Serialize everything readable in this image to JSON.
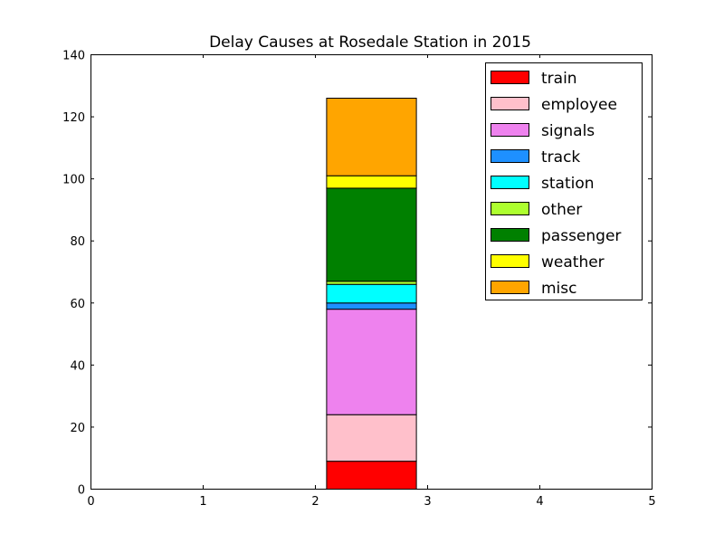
{
  "chart_data": {
    "type": "bar",
    "stacked": true,
    "title": "Delay Causes at Rosedale Station in 2015",
    "xlabel": "",
    "ylabel": "",
    "xlim": [
      0,
      5
    ],
    "ylim": [
      0,
      140
    ],
    "x_ticks": [
      0,
      1,
      2,
      3,
      4,
      5
    ],
    "y_ticks": [
      0,
      20,
      40,
      60,
      80,
      100,
      120,
      140
    ],
    "bar": {
      "left": 2.1,
      "right": 2.9
    },
    "grid": false,
    "legend_placement": "top-right",
    "series": [
      {
        "name": "train",
        "value": 9,
        "color": "#ff0000"
      },
      {
        "name": "employee",
        "value": 15,
        "color": "#ffc0cb"
      },
      {
        "name": "signals",
        "value": 34,
        "color": "#ee82ee"
      },
      {
        "name": "track",
        "value": 2,
        "color": "#1e90ff"
      },
      {
        "name": "station",
        "value": 6,
        "color": "#00ffff"
      },
      {
        "name": "other",
        "value": 1,
        "color": "#adff2f"
      },
      {
        "name": "passenger",
        "value": 30,
        "color": "#008000"
      },
      {
        "name": "weather",
        "value": 4,
        "color": "#ffff00"
      },
      {
        "name": "misc",
        "value": 25,
        "color": "#ffa500"
      }
    ]
  }
}
